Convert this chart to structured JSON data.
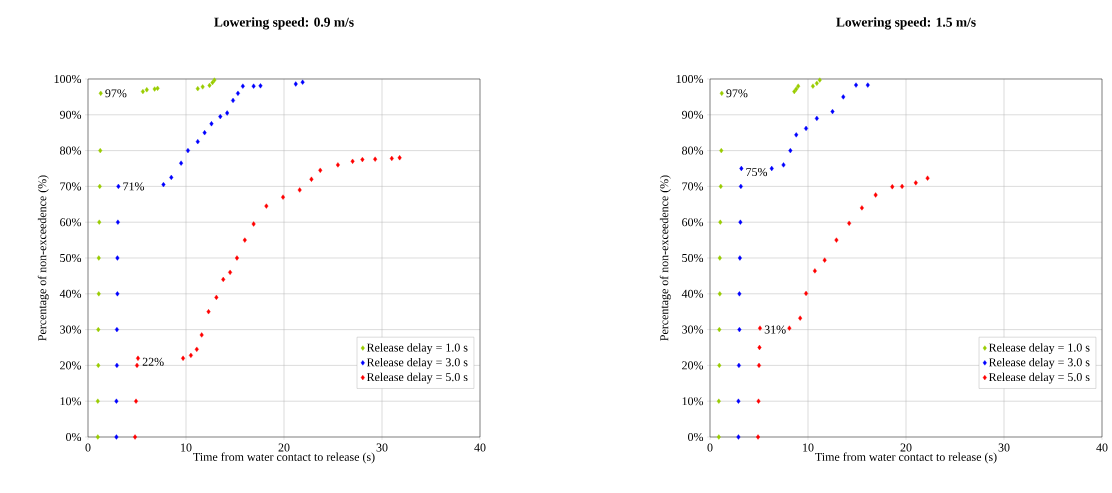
{
  "chart_data": [
    {
      "type": "scatter",
      "title": "Lowering speed: 0.9 m/s",
      "xlabel": "Time from water contact to release (s)",
      "ylabel": "Percentage of non-exceedence (%)",
      "xlim": [
        0,
        40
      ],
      "ylim": [
        0,
        100
      ],
      "xticks": [
        0,
        10,
        20,
        30,
        40
      ],
      "yticks": [
        {
          "value": 0,
          "label": "0%"
        },
        {
          "value": 10,
          "label": "10%"
        },
        {
          "value": 20,
          "label": "20%"
        },
        {
          "value": 30,
          "label": "30%"
        },
        {
          "value": 40,
          "label": "40%"
        },
        {
          "value": 50,
          "label": "50%"
        },
        {
          "value": 60,
          "label": "60%"
        },
        {
          "value": 70,
          "label": "70%"
        },
        {
          "value": 80,
          "label": "80%"
        },
        {
          "value": 90,
          "label": "90%"
        },
        {
          "value": 100,
          "label": "100%"
        }
      ],
      "grid": true,
      "legend": "bottom right",
      "marker": "diamond",
      "annotations": [
        {
          "text": "97%",
          "x": 1.3,
          "y": 96
        },
        {
          "text": "71%",
          "x": 3.1,
          "y": 70
        },
        {
          "text": "22%",
          "x": 5.1,
          "y": 21
        }
      ],
      "series": [
        {
          "name": "Release delay = 1.0 s",
          "color": "#99cc00",
          "x": [
            1.0,
            1.0,
            1.05,
            1.05,
            1.1,
            1.1,
            1.15,
            1.2,
            1.25,
            1.3,
            5.6,
            6.0,
            6.8,
            7.1,
            11.2,
            11.7,
            12.4,
            12.7,
            12.9
          ],
          "values": [
            0,
            10,
            20,
            30,
            40,
            50,
            60,
            70,
            80,
            96,
            96.5,
            97,
            97.2,
            97.4,
            97.3,
            97.8,
            98.2,
            99,
            99.7
          ]
        },
        {
          "name": "Release delay = 3.0 s",
          "color": "#0000ff",
          "x": [
            2.9,
            2.9,
            2.95,
            2.95,
            3.0,
            3.0,
            3.05,
            3.1,
            7.7,
            8.5,
            9.5,
            10.2,
            11.2,
            11.9,
            12.6,
            13.5,
            14.2,
            14.8,
            15.3,
            15.8,
            16.9,
            17.6,
            21.2,
            21.9
          ],
          "values": [
            0,
            10,
            20,
            30,
            40,
            50,
            60,
            70,
            70.5,
            72.5,
            76.5,
            80,
            82.5,
            85,
            87.5,
            89.5,
            90.5,
            94,
            96,
            98,
            98,
            98.1,
            98.6,
            99.1
          ]
        },
        {
          "name": "Release delay = 5.0 s",
          "color": "#ff0000",
          "x": [
            4.8,
            4.9,
            5.0,
            5.1,
            9.7,
            10.5,
            11.1,
            11.6,
            12.3,
            13.1,
            13.8,
            14.5,
            15.2,
            16.0,
            16.9,
            18.2,
            19.9,
            21.6,
            22.8,
            23.7,
            25.5,
            27.0,
            28.0,
            29.3,
            31.0,
            31.8
          ],
          "values": [
            0,
            10,
            20,
            22,
            22,
            22.8,
            24.5,
            28.5,
            35,
            39,
            44,
            46,
            50,
            55,
            59.5,
            64.5,
            67,
            69,
            72,
            74.5,
            76,
            77,
            77.5,
            77.6,
            77.8,
            78
          ]
        }
      ]
    },
    {
      "type": "scatter",
      "title": "Lowering speed: 1.5 m/s",
      "xlabel": "Time from water contact to release (s)",
      "ylabel": "Percentage of non-exceedence (%)",
      "xlim": [
        0,
        40
      ],
      "ylim": [
        0,
        100
      ],
      "xticks": [
        0,
        10,
        20,
        30,
        40
      ],
      "yticks": [
        {
          "value": 0,
          "label": "0%"
        },
        {
          "value": 10,
          "label": "10%"
        },
        {
          "value": 20,
          "label": "20%"
        },
        {
          "value": 30,
          "label": "30%"
        },
        {
          "value": 40,
          "label": "40%"
        },
        {
          "value": 50,
          "label": "50%"
        },
        {
          "value": 60,
          "label": "60%"
        },
        {
          "value": 70,
          "label": "70%"
        },
        {
          "value": 80,
          "label": "80%"
        },
        {
          "value": 90,
          "label": "90%"
        },
        {
          "value": 100,
          "label": "100%"
        }
      ],
      "grid": true,
      "legend": "bottom right",
      "marker": "diamond",
      "annotations": [
        {
          "text": "97%",
          "x": 1.2,
          "y": 96
        },
        {
          "text": "75%",
          "x": 3.2,
          "y": 74
        },
        {
          "text": "31%",
          "x": 5.1,
          "y": 30
        }
      ],
      "series": [
        {
          "name": "Release delay = 1.0 s",
          "color": "#99cc00",
          "x": [
            0.9,
            0.9,
            0.95,
            0.95,
            1.0,
            1.0,
            1.05,
            1.1,
            1.15,
            1.2,
            8.6,
            8.8,
            9.0,
            10.5,
            10.9,
            11.2
          ],
          "values": [
            0,
            10,
            20,
            30,
            40,
            50,
            60,
            70,
            80,
            96,
            96.5,
            97.2,
            98,
            98,
            98.8,
            99.7
          ]
        },
        {
          "name": "Release delay = 3.0 s",
          "color": "#0000ff",
          "x": [
            2.9,
            2.9,
            2.95,
            3.0,
            3.0,
            3.05,
            3.1,
            3.15,
            3.2,
            6.3,
            7.5,
            8.2,
            8.8,
            9.8,
            10.9,
            12.5,
            13.6,
            14.9,
            16.1
          ],
          "values": [
            0,
            10,
            20,
            30,
            40,
            50,
            60,
            70,
            75,
            75,
            76,
            80,
            84.4,
            86.2,
            89,
            90.9,
            95,
            98.3,
            98.3
          ]
        },
        {
          "name": "Release delay = 5.0 s",
          "color": "#ff0000",
          "x": [
            4.9,
            4.95,
            5.0,
            5.05,
            5.1,
            8.1,
            9.2,
            9.8,
            10.7,
            11.7,
            12.9,
            14.2,
            15.5,
            16.9,
            18.6,
            19.6,
            21.0,
            22.2
          ],
          "values": [
            0,
            10,
            20,
            25,
            30.4,
            30.4,
            33.2,
            40.1,
            46.4,
            49.4,
            55,
            59.7,
            64,
            67.6,
            69.9,
            70,
            71,
            72.3
          ]
        }
      ]
    }
  ]
}
